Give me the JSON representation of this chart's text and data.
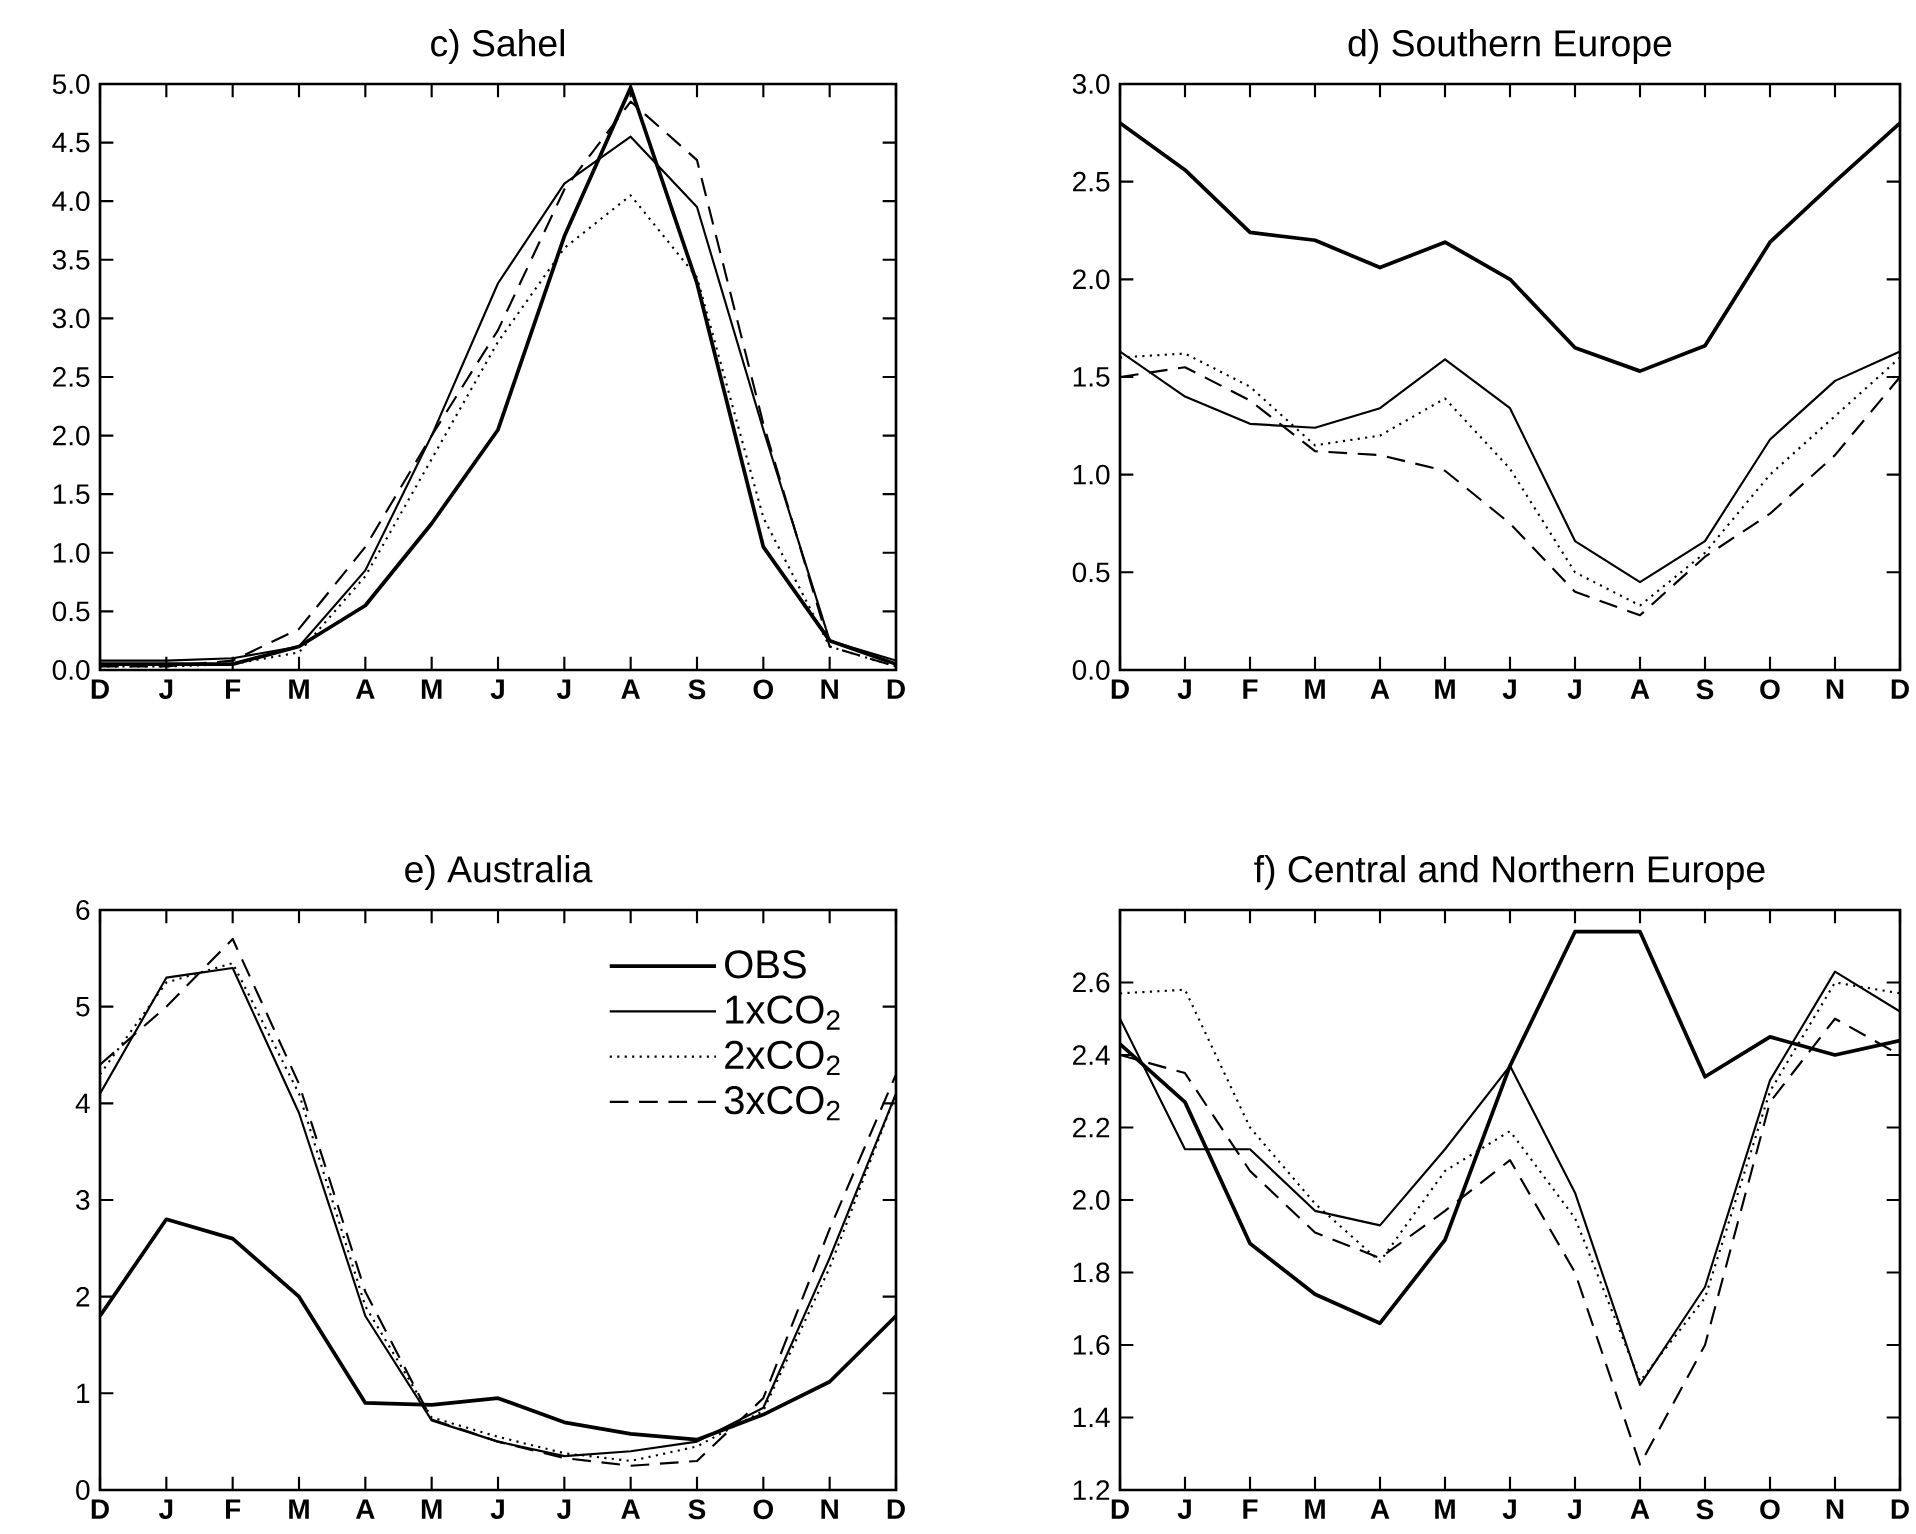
{
  "chart_data": [
    {
      "type": "line",
      "title": "c)   Sahel",
      "categories": [
        "D",
        "J",
        "F",
        "M",
        "A",
        "M",
        "J",
        "J",
        "A",
        "S",
        "O",
        "N",
        "D"
      ],
      "ylim": [
        0,
        5
      ],
      "yticks": [
        {
          "value": 0,
          "label": "0.0"
        },
        {
          "value": 0.5,
          "label": "0.5"
        },
        {
          "value": 1,
          "label": "1.0"
        },
        {
          "value": 1.5,
          "label": "1.5"
        },
        {
          "value": 2,
          "label": "2.0"
        },
        {
          "value": 2.5,
          "label": "2.5"
        },
        {
          "value": 3,
          "label": "3.0"
        },
        {
          "value": 3.5,
          "label": "3.5"
        },
        {
          "value": 4,
          "label": "4.0"
        },
        {
          "value": 4.5,
          "label": "4.5"
        },
        {
          "value": 5,
          "label": "5.0"
        }
      ],
      "series": [
        {
          "color": "#000000",
          "line_style": "solid",
          "values": [
            0.05,
            0.05,
            0.05,
            0.2,
            0.55,
            1.25,
            2.05,
            3.7,
            4.97,
            3.3,
            1.05,
            0.25,
            0.05
          ]
        },
        {
          "color": "#000000",
          "line_style": "solid",
          "values": [
            0.08,
            0.08,
            0.1,
            0.2,
            0.85,
            2.0,
            3.3,
            4.15,
            4.55,
            3.95,
            2.05,
            0.25,
            0.08
          ]
        },
        {
          "color": "#000000",
          "line_style": "dotted",
          "values": [
            0.03,
            0.03,
            0.05,
            0.15,
            0.8,
            1.8,
            2.8,
            3.6,
            4.05,
            3.35,
            1.3,
            0.2,
            0.03
          ]
        },
        {
          "color": "#000000",
          "line_style": "dashed",
          "values": [
            0.03,
            0.03,
            0.08,
            0.35,
            1.05,
            2.0,
            2.9,
            4.1,
            4.85,
            4.35,
            2.1,
            0.2,
            0.03
          ]
        }
      ]
    },
    {
      "type": "line",
      "title": "d)   Southern Europe",
      "categories": [
        "D",
        "J",
        "F",
        "M",
        "A",
        "M",
        "J",
        "J",
        "A",
        "S",
        "O",
        "N",
        "D"
      ],
      "ylim": [
        0,
        3
      ],
      "yticks": [
        {
          "value": 0,
          "label": "0.0"
        },
        {
          "value": 0.5,
          "label": "0.5"
        },
        {
          "value": 1,
          "label": "1.0"
        },
        {
          "value": 1.5,
          "label": "1.5"
        },
        {
          "value": 2,
          "label": "2.0"
        },
        {
          "value": 2.5,
          "label": "2.5"
        },
        {
          "value": 3,
          "label": "3.0"
        }
      ],
      "series": [
        {
          "color": "#000000",
          "line_style": "solid",
          "values": [
            2.8,
            2.56,
            2.24,
            2.2,
            2.06,
            2.19,
            2.0,
            1.65,
            1.53,
            1.66,
            2.19,
            2.5,
            2.8
          ]
        },
        {
          "color": "#000000",
          "line_style": "solid",
          "values": [
            1.63,
            1.4,
            1.26,
            1.24,
            1.34,
            1.59,
            1.34,
            0.66,
            0.45,
            0.66,
            1.18,
            1.48,
            1.63
          ]
        },
        {
          "color": "#000000",
          "line_style": "dotted",
          "values": [
            1.6,
            1.62,
            1.45,
            1.15,
            1.2,
            1.39,
            1.03,
            0.5,
            0.33,
            0.6,
            1.0,
            1.3,
            1.6
          ]
        },
        {
          "color": "#000000",
          "line_style": "dashed",
          "values": [
            1.5,
            1.55,
            1.38,
            1.12,
            1.1,
            1.02,
            0.75,
            0.4,
            0.28,
            0.58,
            0.8,
            1.1,
            1.5
          ]
        }
      ]
    },
    {
      "type": "line",
      "title": "e)   Australia",
      "categories": [
        "D",
        "J",
        "F",
        "M",
        "A",
        "M",
        "J",
        "J",
        "A",
        "S",
        "O",
        "N",
        "D"
      ],
      "ylim": [
        0,
        6
      ],
      "yticks": [
        0,
        1,
        2,
        3,
        4,
        5,
        6
      ],
      "legend": "top right",
      "series": [
        {
          "name": "OBS",
          "color": "#000000",
          "line_style": "solid",
          "values": [
            1.8,
            2.8,
            2.6,
            2.0,
            0.9,
            0.88,
            0.95,
            0.7,
            0.58,
            0.52,
            0.78,
            1.12,
            1.8
          ]
        },
        {
          "name": "1xCO$_{2}$",
          "color": "#000000",
          "line_style": "solid",
          "values": [
            4.1,
            5.3,
            5.4,
            3.9,
            1.8,
            0.72,
            0.5,
            0.35,
            0.4,
            0.5,
            0.85,
            2.4,
            4.1
          ]
        },
        {
          "name": "2xCO$_{2}$",
          "color": "#000000",
          "line_style": "dotted",
          "values": [
            4.3,
            5.25,
            5.45,
            4.1,
            1.9,
            0.75,
            0.55,
            0.38,
            0.3,
            0.45,
            0.82,
            2.3,
            4.1
          ]
        },
        {
          "name": "3xCO$_{2}$",
          "color": "#000000",
          "line_style": "dashed",
          "values": [
            4.4,
            5.0,
            5.7,
            4.2,
            2.05,
            0.73,
            0.5,
            0.33,
            0.25,
            0.3,
            0.95,
            2.7,
            4.3
          ]
        }
      ]
    },
    {
      "type": "line",
      "title": "f)   Central and Northern Europe",
      "categories": [
        "D",
        "J",
        "F",
        "M",
        "A",
        "M",
        "J",
        "J",
        "A",
        "S",
        "O",
        "N",
        "D"
      ],
      "ylim": [
        1.2,
        2.8
      ],
      "yticks": [
        1.2,
        1.4,
        1.6,
        1.8,
        {
          "value": 2,
          "label": "2.0"
        },
        2.2,
        2.4,
        2.6
      ],
      "series": [
        {
          "color": "#000000",
          "line_style": "solid",
          "values": [
            2.43,
            2.27,
            1.88,
            1.74,
            1.66,
            1.89,
            2.37,
            2.74,
            2.74,
            2.34,
            2.45,
            2.4,
            2.44
          ]
        },
        {
          "color": "#000000",
          "line_style": "solid",
          "values": [
            2.5,
            2.14,
            2.14,
            1.97,
            1.93,
            2.14,
            2.37,
            2.02,
            1.49,
            1.76,
            2.33,
            2.63,
            2.52
          ]
        },
        {
          "color": "#000000",
          "line_style": "dotted",
          "values": [
            2.57,
            2.58,
            2.2,
            1.99,
            1.83,
            2.08,
            2.19,
            1.95,
            1.5,
            1.73,
            2.3,
            2.6,
            2.57
          ]
        },
        {
          "color": "#000000",
          "line_style": "dashed",
          "values": [
            2.4,
            2.35,
            2.08,
            1.91,
            1.84,
            1.97,
            2.11,
            1.8,
            1.27,
            1.6,
            2.27,
            2.5,
            2.4
          ]
        }
      ]
    }
  ]
}
